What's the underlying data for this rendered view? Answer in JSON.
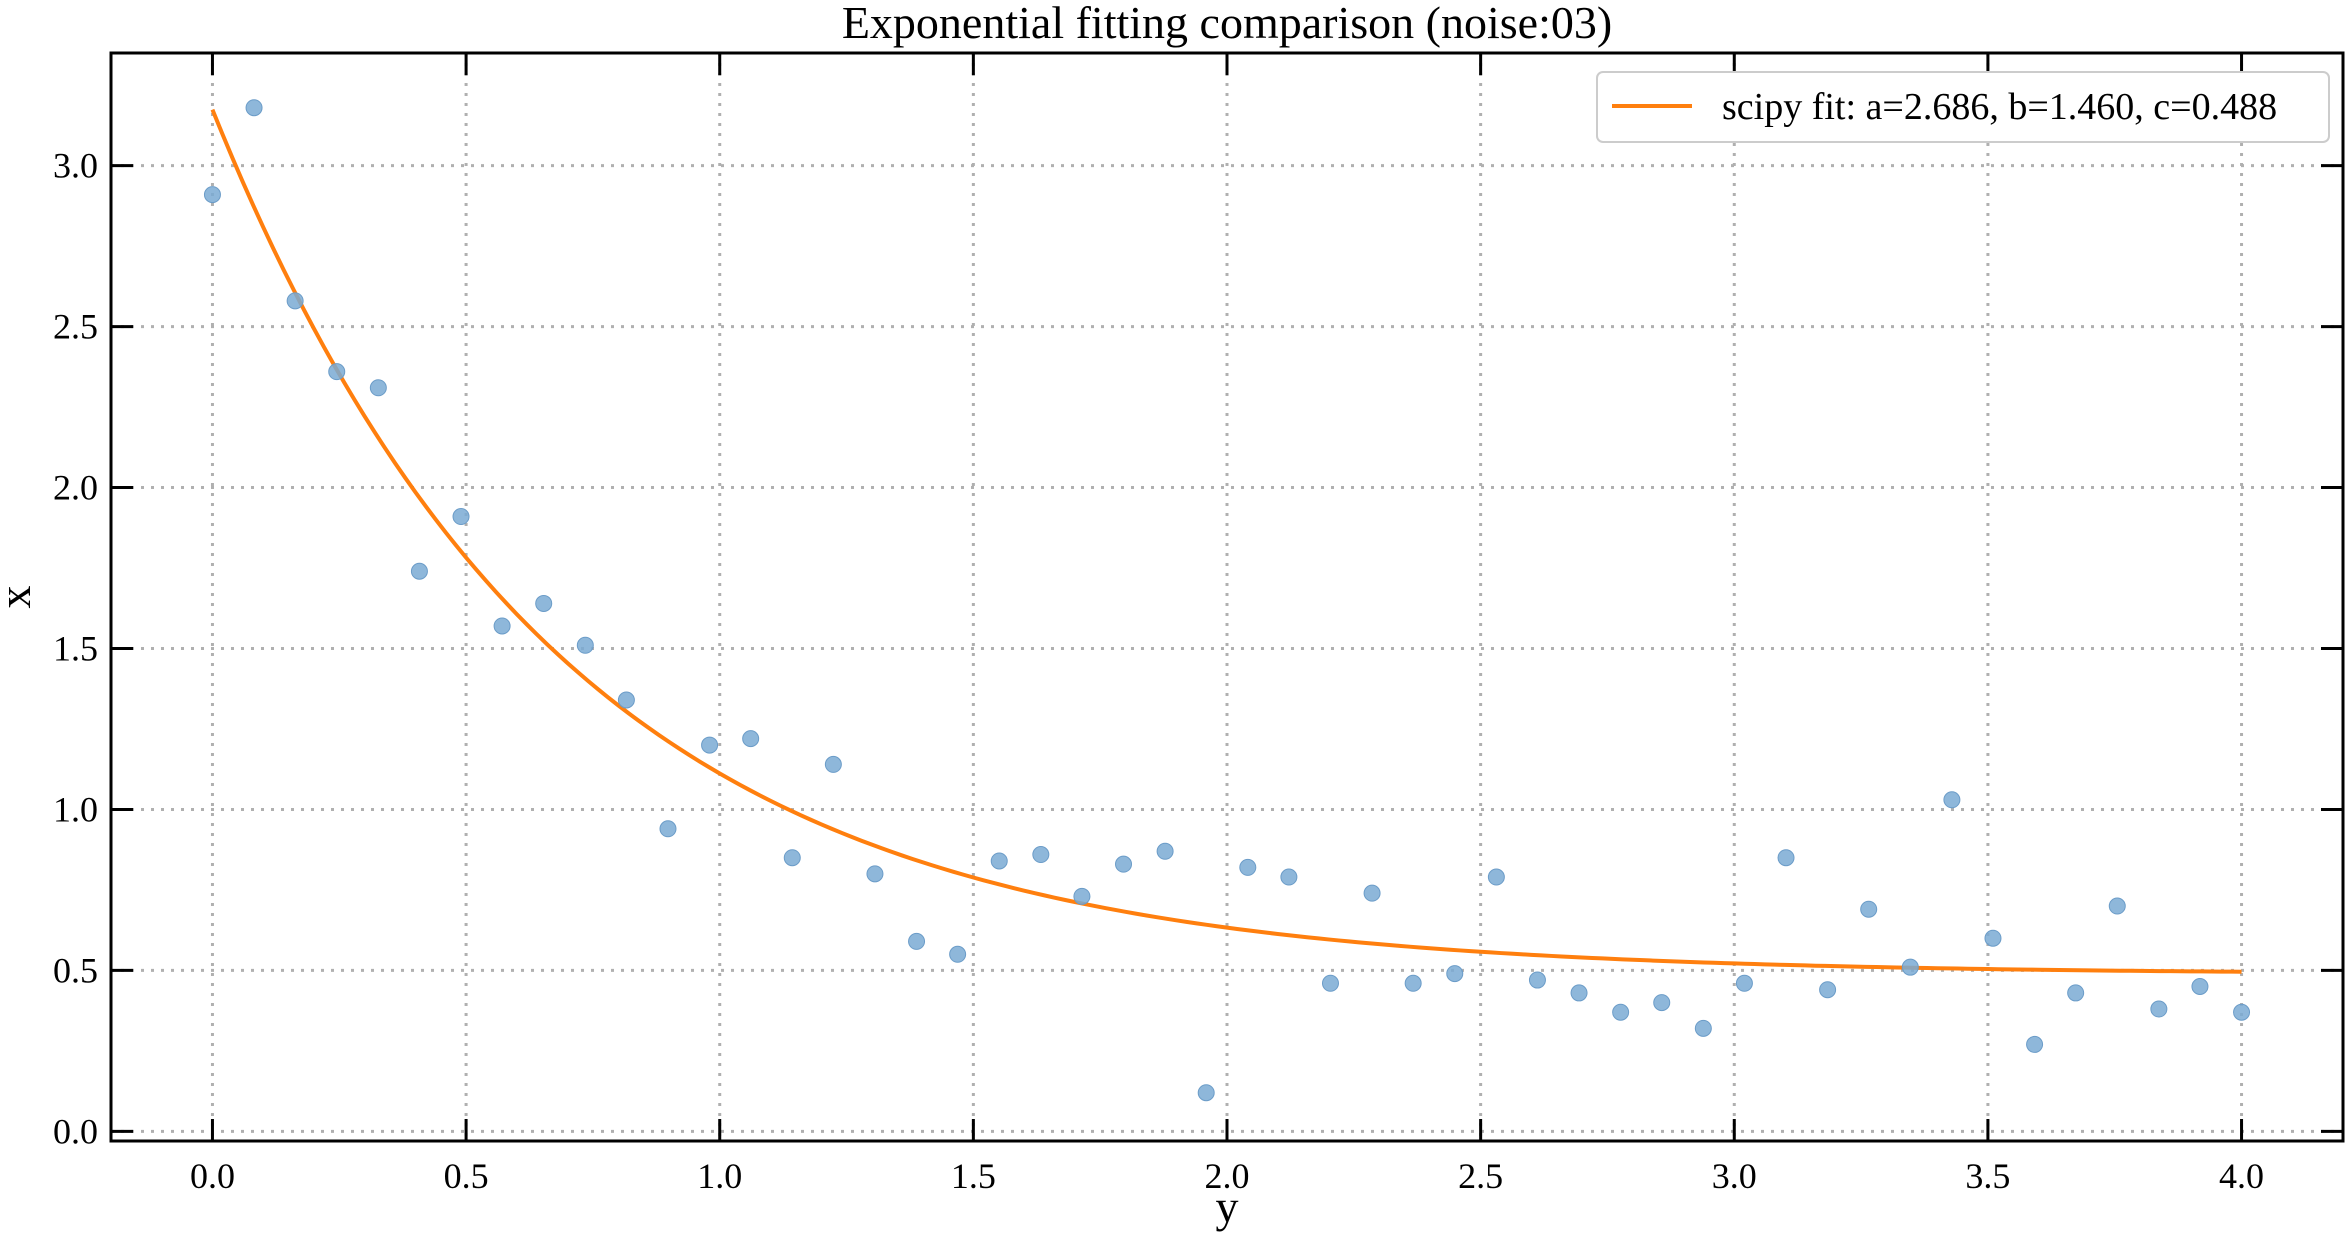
{
  "chart_data": {
    "type": "scatter",
    "title": "Exponential fitting comparison (noise:03)",
    "xlabel": "y",
    "ylabel": "x",
    "xlim": [
      -0.2,
      4.2
    ],
    "ylim": [
      -0.03,
      3.35
    ],
    "x_ticks": [
      "0.0",
      "0.5",
      "1.0",
      "1.5",
      "2.0",
      "2.5",
      "3.0",
      "3.5",
      "4.0"
    ],
    "y_ticks": [
      "0.0",
      "0.5",
      "1.0",
      "1.5",
      "2.0",
      "2.5",
      "3.0"
    ],
    "grid": true,
    "legend_position": "top-right",
    "colors": {
      "points": "#7aaad4",
      "fit": "#ff7f0e",
      "grid": "#b0b0b0",
      "axes": "#000000"
    },
    "series": [
      {
        "type": "scatter",
        "x": [
          0.0,
          0.082,
          0.163,
          0.245,
          0.327,
          0.408,
          0.49,
          0.571,
          0.653,
          0.735,
          0.816,
          0.898,
          0.98,
          1.061,
          1.143,
          1.224,
          1.306,
          1.388,
          1.469,
          1.551,
          1.633,
          1.714,
          1.796,
          1.878,
          1.959,
          2.041,
          2.122,
          2.204,
          2.286,
          2.367,
          2.449,
          2.531,
          2.612,
          2.694,
          2.776,
          2.857,
          2.939,
          3.02,
          3.102,
          3.184,
          3.265,
          3.347,
          3.429,
          3.51,
          3.592,
          3.673,
          3.755,
          3.837,
          3.918,
          4.0
        ],
        "y": [
          2.91,
          3.18,
          2.58,
          2.36,
          2.31,
          1.74,
          1.91,
          1.57,
          1.64,
          1.51,
          1.34,
          0.94,
          1.2,
          1.22,
          0.85,
          1.14,
          0.8,
          0.59,
          0.55,
          0.84,
          0.86,
          0.73,
          0.83,
          0.87,
          0.12,
          0.82,
          0.79,
          0.46,
          0.74,
          0.46,
          0.49,
          0.79,
          0.47,
          0.43,
          0.37,
          0.4,
          0.32,
          0.46,
          0.85,
          0.44,
          0.69,
          0.51,
          1.03,
          0.6,
          0.27,
          0.43,
          0.7,
          0.38,
          0.45,
          0.37
        ]
      },
      {
        "type": "line",
        "name": "scipy fit: a=2.686, b=1.460, c=0.488",
        "params": {
          "a": 2.686,
          "b": 1.46,
          "c": 0.488
        },
        "x_range": [
          0.0,
          4.0
        ]
      }
    ]
  }
}
